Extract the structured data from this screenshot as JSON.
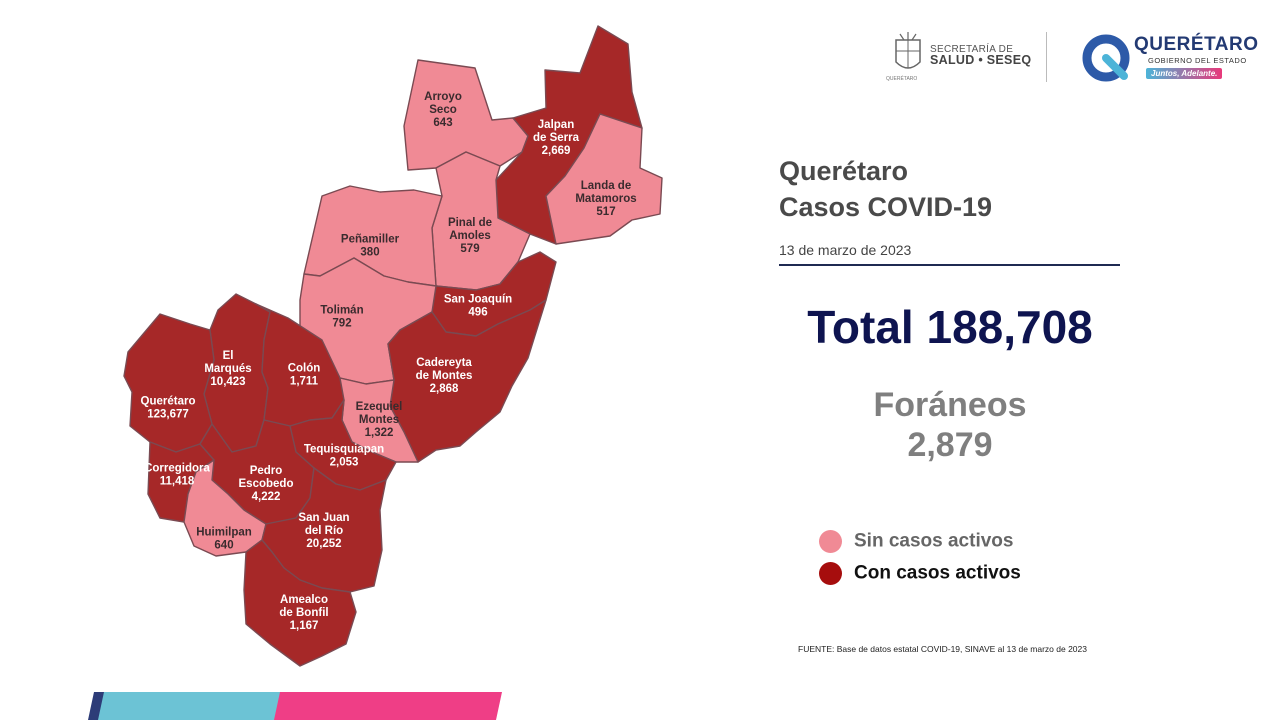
{
  "header": {
    "secretaria_line1": "SECRETARÍA DE",
    "secretaria_line2": "SALUD • SESEQ",
    "seal_caption": "QUERÉTARO",
    "gobierno_name": "QUERÉTARO",
    "gobierno_subtitle": "GOBIERNO DEL ESTADO",
    "gobierno_slogan": "Juntos, Adelante."
  },
  "title_line1": "Querétaro",
  "title_line2": "Casos COVID-19",
  "date": "13 de marzo de 2023",
  "total_label": "Total 188,708",
  "foraneos_label": "Foráneos",
  "foraneos_value": "2,879",
  "legend": [
    {
      "label": "Sin casos activos",
      "color": "#f08a95",
      "text_color": "#666666"
    },
    {
      "label": "Con casos activos",
      "color": "#a60d0d",
      "text_color": "#111111"
    }
  ],
  "source": "FUENTE: Base de datos estatal COVID-19, SINAVE al 13 de marzo de 2023",
  "colors": {
    "sin_casos_activos": "#f08a95",
    "con_casos_activos": "#a62828",
    "title": "#4a4a4a",
    "total": "#0e1450",
    "stripe_blue": "#6cc3d5",
    "stripe_pink": "#ef3e86",
    "stripe_navy": "#2d3c78"
  },
  "municipalities": [
    {
      "name": "Arroyo Seco",
      "lines": [
        "Arroyo",
        "Seco"
      ],
      "cases": "643",
      "active": false
    },
    {
      "name": "Jalpan de Serra",
      "lines": [
        "Jalpan",
        "de Serra"
      ],
      "cases": "2,669",
      "active": true
    },
    {
      "name": "Landa de Matamoros",
      "lines": [
        "Landa de",
        "Matamoros"
      ],
      "cases": "517",
      "active": false
    },
    {
      "name": "Pinal de Amoles",
      "lines": [
        "Pinal de",
        "Amoles"
      ],
      "cases": "579",
      "active": false
    },
    {
      "name": "Peñamiller",
      "lines": [
        "Peñamiller"
      ],
      "cases": "380",
      "active": false
    },
    {
      "name": "San Joaquín",
      "lines": [
        "San Joaquín"
      ],
      "cases": "496",
      "active": true
    },
    {
      "name": "Tolimán",
      "lines": [
        "Tolimán"
      ],
      "cases": "792",
      "active": false
    },
    {
      "name": "Cadereyta de Montes",
      "lines": [
        "Cadereyta",
        "de Montes"
      ],
      "cases": "2,868",
      "active": true
    },
    {
      "name": "El Marqués",
      "lines": [
        "El",
        "Marqués"
      ],
      "cases": "10,423",
      "active": true
    },
    {
      "name": "Colón",
      "lines": [
        "Colón"
      ],
      "cases": "1,711",
      "active": true
    },
    {
      "name": "Querétaro",
      "lines": [
        "Querétaro"
      ],
      "cases": "123,677",
      "active": true
    },
    {
      "name": "Ezequiel Montes",
      "lines": [
        "Ezequiel",
        "Montes"
      ],
      "cases": "1,322",
      "active": false
    },
    {
      "name": "Tequisquiapan",
      "lines": [
        "Tequisquiapan"
      ],
      "cases": "2,053",
      "active": true
    },
    {
      "name": "Corregidora",
      "lines": [
        "Corregidora"
      ],
      "cases": "11,418",
      "active": true
    },
    {
      "name": "Pedro Escobedo",
      "lines": [
        "Pedro",
        "Escobedo"
      ],
      "cases": "4,222",
      "active": true
    },
    {
      "name": "Huimilpan",
      "lines": [
        "Huimilpan"
      ],
      "cases": "640",
      "active": false
    },
    {
      "name": "San Juan del Río",
      "lines": [
        "San Juan",
        "del Río"
      ],
      "cases": "20,252",
      "active": true
    },
    {
      "name": "Amealco de Bonfil",
      "lines": [
        "Amealco",
        "de Bonfil"
      ],
      "cases": "1,167",
      "active": true
    }
  ]
}
